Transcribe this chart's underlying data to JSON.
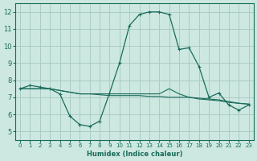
{
  "xlabel": "Humidex (Indice chaleur)",
  "bg_color": "#cce8e0",
  "grid_color": "#aaccc4",
  "line_color": "#1a6b5a",
  "xlim": [
    -0.5,
    23.5
  ],
  "ylim": [
    4.5,
    12.5
  ],
  "xticks": [
    0,
    1,
    2,
    3,
    4,
    5,
    6,
    7,
    8,
    9,
    10,
    11,
    12,
    13,
    14,
    15,
    16,
    17,
    18,
    19,
    20,
    21,
    22,
    23
  ],
  "yticks": [
    5,
    6,
    7,
    8,
    9,
    10,
    11,
    12
  ],
  "curve1_x": [
    0,
    1,
    2,
    3,
    4,
    5,
    6,
    7,
    8,
    9,
    10,
    11,
    12,
    13,
    14,
    15,
    16,
    17,
    18,
    19,
    20,
    21,
    22,
    23
  ],
  "curve1_y": [
    7.5,
    7.7,
    7.6,
    7.5,
    7.2,
    5.9,
    5.4,
    5.3,
    5.6,
    7.25,
    9.0,
    11.2,
    11.85,
    12.0,
    12.0,
    11.85,
    9.8,
    9.9,
    8.8,
    7.0,
    7.25,
    6.55,
    6.25,
    6.55
  ],
  "curve2_x": [
    0,
    1,
    2,
    3,
    4,
    5,
    6,
    7,
    8,
    9,
    10,
    11,
    12,
    13,
    14,
    15,
    16,
    17,
    18,
    19,
    20,
    21,
    22,
    23
  ],
  "curve2_y": [
    7.5,
    7.5,
    7.5,
    7.5,
    7.4,
    7.3,
    7.2,
    7.2,
    7.2,
    7.2,
    7.2,
    7.2,
    7.2,
    7.2,
    7.2,
    7.5,
    7.2,
    7.0,
    6.9,
    6.85,
    6.8,
    6.7,
    6.65,
    6.6
  ],
  "curve3_x": [
    0,
    1,
    2,
    3,
    4,
    5,
    6,
    7,
    8,
    9,
    10,
    11,
    12,
    13,
    14,
    15,
    16,
    17,
    18,
    19,
    20,
    21,
    22,
    23
  ],
  "curve3_y": [
    7.5,
    7.5,
    7.5,
    7.5,
    7.4,
    7.3,
    7.2,
    7.2,
    7.15,
    7.1,
    7.1,
    7.1,
    7.1,
    7.05,
    7.05,
    7.0,
    7.0,
    7.0,
    6.95,
    6.9,
    6.85,
    6.75,
    6.65,
    6.6
  ]
}
